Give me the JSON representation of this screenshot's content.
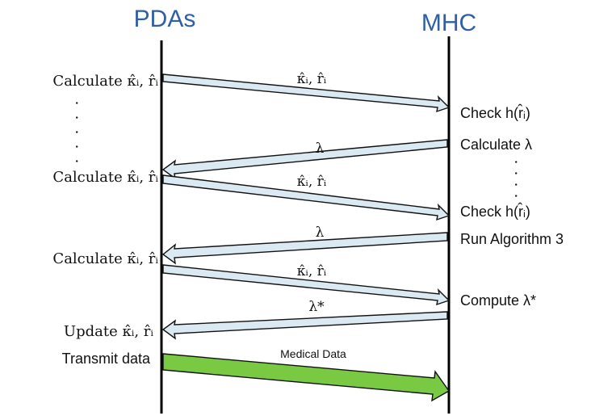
{
  "headers": {
    "left": "PDAs",
    "right": "MHC"
  },
  "left_labels": {
    "calc1": "Calculate κ̂ᵢ, r̂ᵢ",
    "calc2": "Calculate κ̂ᵢ, r̂ᵢ",
    "calc3": "Calculate κ̂ᵢ, r̂ᵢ",
    "update": "Update κ̂ᵢ, r̂ᵢ",
    "transmit": "Transmit data"
  },
  "right_labels": {
    "check1": "Check h(r̂ᵢ)",
    "calc_lambda": "Calculate λ",
    "check2": "Check h(r̂ᵢ)",
    "run_alg": "Run Algorithm 3",
    "compute": "Compute λ*"
  },
  "arrow_labels": {
    "m1": "κ̂ᵢ, r̂ᵢ",
    "m2": "λ",
    "m3": "κ̂ᵢ, r̂ᵢ",
    "m4": "λ",
    "m5": "κ̂ᵢ, r̂ᵢ",
    "m6": "λ*",
    "m7": "Medical Data"
  },
  "ellipsis": {
    "left": ". . . . .",
    "right": ". . . ."
  },
  "colors": {
    "header": "#2e5fa7",
    "arrow_fill": "#dbe9f2",
    "arrow_stroke": "#111111",
    "data_arrow_fill": "#7ac943",
    "lifeline": "#000000"
  }
}
